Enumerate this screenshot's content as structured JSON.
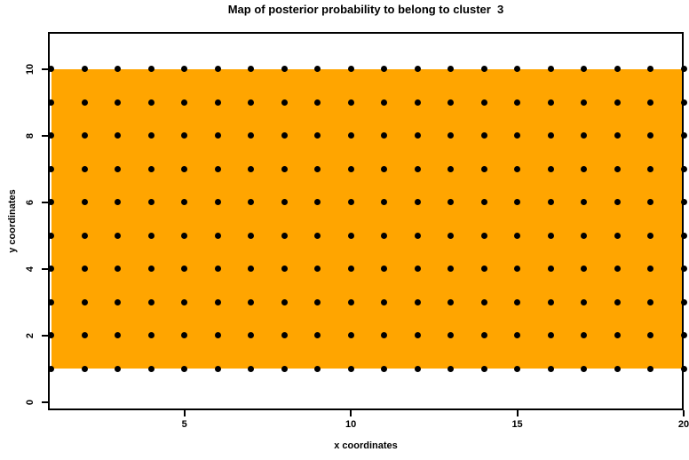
{
  "chart_data": {
    "type": "heatmap",
    "title": "Map of posterior probability to belong to cluster  3",
    "xlabel": "x coordinates",
    "ylabel": "y coordinates",
    "x_ticks": [
      5,
      10,
      15,
      20
    ],
    "y_ticks": [
      0,
      2,
      4,
      6,
      8,
      10
    ],
    "xlim": [
      0.9,
      20
    ],
    "ylim": [
      -0.25,
      11.12
    ],
    "grid_x": {
      "from": 1,
      "to": 20,
      "step": 1
    },
    "grid_y": {
      "from": 1,
      "to": 10,
      "step": 1
    },
    "region": {
      "x0": 1,
      "x1": 20,
      "y0": 1,
      "y1": 10,
      "fill_color": "#FFA500"
    },
    "point_color": "#000000",
    "axis_color": "#000000",
    "background_color": "#FFFFFF",
    "legend": "none",
    "grid": "off"
  }
}
